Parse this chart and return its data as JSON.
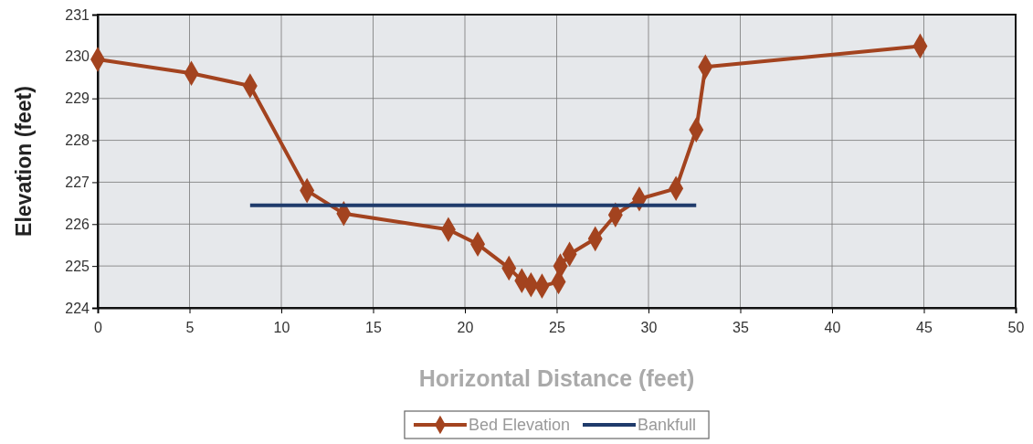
{
  "chart_data": {
    "type": "line",
    "xlabel": "Horizontal Distance (feet)",
    "ylabel": "Elevation (feet)",
    "xlim": [
      0,
      50
    ],
    "xticks": [
      0,
      5,
      10,
      15,
      20,
      25,
      30,
      35,
      40,
      45,
      50
    ],
    "ylim": [
      224,
      231
    ],
    "yticks": [
      224,
      225,
      226,
      227,
      228,
      229,
      230,
      231
    ],
    "grid": true,
    "legend": "bottom",
    "series": [
      {
        "name": "Bed Elevation",
        "color": "#a3431f",
        "marker": "diamond",
        "x": [
          0,
          5.1,
          8.3,
          11.4,
          13.4,
          19.1,
          20.7,
          22.4,
          23.1,
          23.6,
          24.2,
          25.1,
          25.2,
          25.7,
          27.1,
          28.2,
          29.5,
          31.5,
          32.6,
          33.1,
          44.8
        ],
        "values": [
          229.93,
          229.6,
          229.3,
          226.8,
          226.25,
          225.87,
          225.52,
          224.95,
          224.65,
          224.55,
          224.52,
          224.62,
          225.0,
          225.28,
          225.65,
          226.22,
          226.6,
          226.85,
          228.25,
          229.75,
          230.25
        ]
      },
      {
        "name": "Bankfull",
        "color": "#1f3b6b",
        "marker": "none",
        "x": [
          8.3,
          32.6
        ],
        "values": [
          226.45,
          226.45
        ]
      }
    ]
  }
}
